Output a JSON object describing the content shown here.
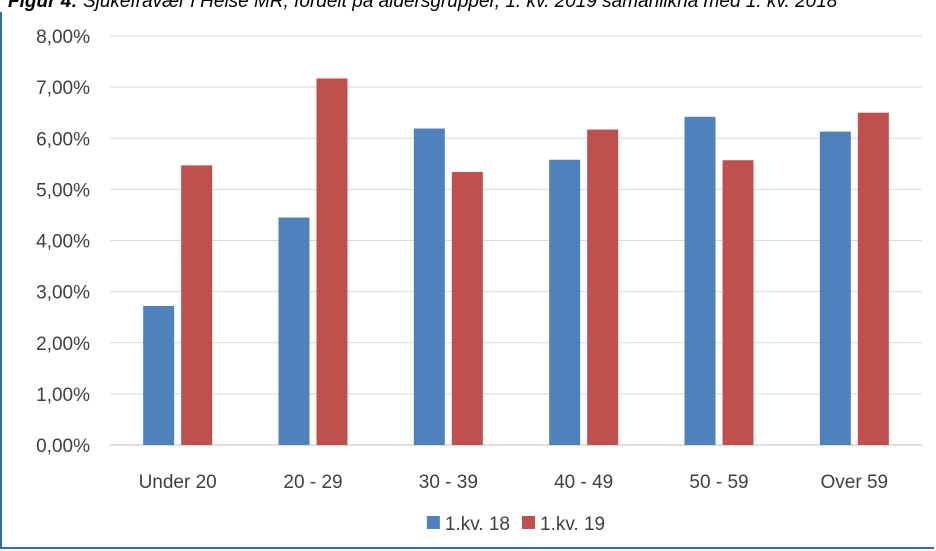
{
  "caption": {
    "lead": "Figur 4:",
    "text": " Sjukefravær i Helse MR, fordelt på aldersgrupper, 1. kv. 2019 samanlikna med 1. kv. 2018"
  },
  "chart_data": {
    "type": "bar",
    "categories": [
      "Under 20",
      "20 - 29",
      "30 - 39",
      "40 - 49",
      "50 - 59",
      "Over 59"
    ],
    "series": [
      {
        "name": "1.kv. 18",
        "color": "#4f81bd",
        "values": [
          2.72,
          4.45,
          6.19,
          5.58,
          6.42,
          6.13
        ]
      },
      {
        "name": "1.kv. 19",
        "color": "#c0504d",
        "values": [
          5.47,
          7.17,
          5.34,
          6.17,
          5.57,
          6.5
        ]
      }
    ],
    "ylim": [
      0,
      8
    ],
    "yticks": [
      "0,00%",
      "1,00%",
      "2,00%",
      "3,00%",
      "4,00%",
      "5,00%",
      "6,00%",
      "7,00%",
      "8,00%"
    ],
    "grid": true,
    "legend": "bottom-center",
    "title": "",
    "xlabel": "",
    "ylabel": ""
  }
}
